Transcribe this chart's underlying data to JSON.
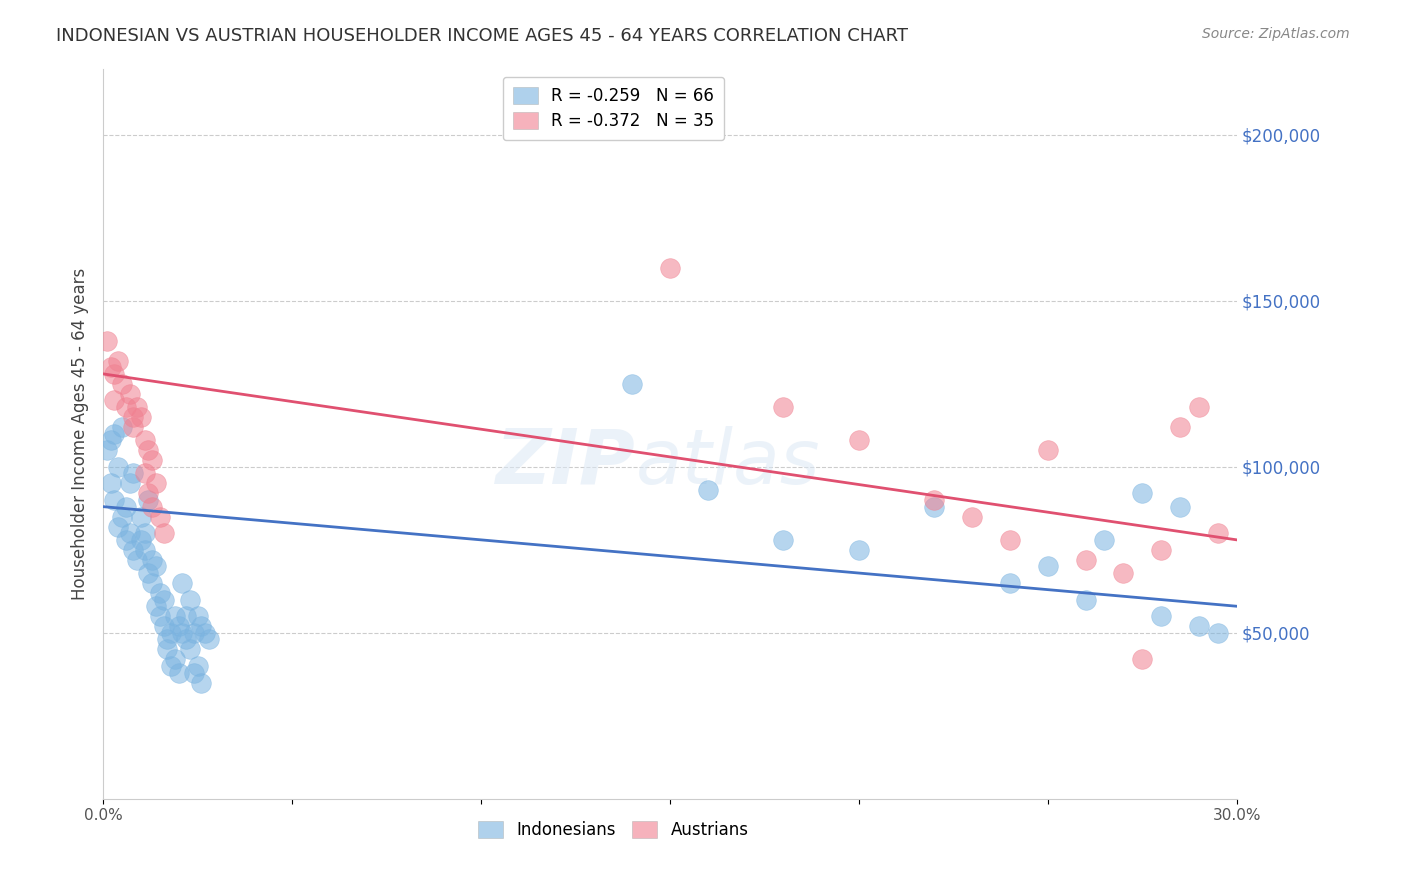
{
  "title": "INDONESIAN VS AUSTRIAN HOUSEHOLDER INCOME AGES 45 - 64 YEARS CORRELATION CHART",
  "source": "Source: ZipAtlas.com",
  "ylabel": "Householder Income Ages 45 - 64 years",
  "ytick_labels": [
    "$50,000",
    "$100,000",
    "$150,000",
    "$200,000"
  ],
  "ytick_values": [
    50000,
    100000,
    150000,
    200000
  ],
  "legend_labels": [
    "Indonesians",
    "Austrians"
  ],
  "legend_entries": [
    {
      "label": "R = -0.259   N = 66",
      "color": "#aec6e8"
    },
    {
      "label": "R = -0.372   N = 35",
      "color": "#f4b8c8"
    }
  ],
  "title_color": "#333333",
  "source_color": "#888888",
  "indonesian_color": "#7ab3e0",
  "austrian_color": "#f08090",
  "indonesian_line_color": "#4472c4",
  "austrian_line_color": "#e05070",
  "right_tick_color": "#4472c4",
  "grid_color": "#cccccc",
  "background_color": "#ffffff",
  "xlim": [
    0,
    0.3
  ],
  "ylim": [
    0,
    220000
  ],
  "indonesian_points": [
    [
      0.001,
      105000
    ],
    [
      0.002,
      108000
    ],
    [
      0.003,
      110000
    ],
    [
      0.002,
      95000
    ],
    [
      0.004,
      100000
    ],
    [
      0.005,
      112000
    ],
    [
      0.003,
      90000
    ],
    [
      0.006,
      88000
    ],
    [
      0.004,
      82000
    ],
    [
      0.005,
      85000
    ],
    [
      0.007,
      95000
    ],
    [
      0.008,
      98000
    ],
    [
      0.006,
      78000
    ],
    [
      0.007,
      80000
    ],
    [
      0.008,
      75000
    ],
    [
      0.009,
      72000
    ],
    [
      0.01,
      85000
    ],
    [
      0.01,
      78000
    ],
    [
      0.011,
      80000
    ],
    [
      0.012,
      90000
    ],
    [
      0.011,
      75000
    ],
    [
      0.013,
      72000
    ],
    [
      0.012,
      68000
    ],
    [
      0.014,
      70000
    ],
    [
      0.013,
      65000
    ],
    [
      0.015,
      62000
    ],
    [
      0.014,
      58000
    ],
    [
      0.016,
      60000
    ],
    [
      0.015,
      55000
    ],
    [
      0.016,
      52000
    ],
    [
      0.017,
      48000
    ],
    [
      0.018,
      50000
    ],
    [
      0.017,
      45000
    ],
    [
      0.019,
      42000
    ],
    [
      0.018,
      40000
    ],
    [
      0.02,
      38000
    ],
    [
      0.019,
      55000
    ],
    [
      0.02,
      52000
    ],
    [
      0.021,
      50000
    ],
    [
      0.022,
      48000
    ],
    [
      0.021,
      65000
    ],
    [
      0.023,
      60000
    ],
    [
      0.022,
      55000
    ],
    [
      0.024,
      50000
    ],
    [
      0.023,
      45000
    ],
    [
      0.025,
      40000
    ],
    [
      0.024,
      38000
    ],
    [
      0.026,
      35000
    ],
    [
      0.025,
      55000
    ],
    [
      0.026,
      52000
    ],
    [
      0.027,
      50000
    ],
    [
      0.028,
      48000
    ],
    [
      0.14,
      125000
    ],
    [
      0.16,
      93000
    ],
    [
      0.18,
      78000
    ],
    [
      0.2,
      75000
    ],
    [
      0.22,
      88000
    ],
    [
      0.24,
      65000
    ],
    [
      0.26,
      60000
    ],
    [
      0.28,
      55000
    ],
    [
      0.29,
      52000
    ],
    [
      0.295,
      50000
    ],
    [
      0.285,
      88000
    ],
    [
      0.275,
      92000
    ],
    [
      0.265,
      78000
    ],
    [
      0.25,
      70000
    ]
  ],
  "austrian_points": [
    [
      0.001,
      138000
    ],
    [
      0.002,
      130000
    ],
    [
      0.003,
      128000
    ],
    [
      0.004,
      132000
    ],
    [
      0.003,
      120000
    ],
    [
      0.005,
      125000
    ],
    [
      0.006,
      118000
    ],
    [
      0.007,
      122000
    ],
    [
      0.008,
      115000
    ],
    [
      0.009,
      118000
    ],
    [
      0.008,
      112000
    ],
    [
      0.01,
      115000
    ],
    [
      0.011,
      108000
    ],
    [
      0.012,
      105000
    ],
    [
      0.011,
      98000
    ],
    [
      0.013,
      102000
    ],
    [
      0.012,
      92000
    ],
    [
      0.014,
      95000
    ],
    [
      0.013,
      88000
    ],
    [
      0.015,
      85000
    ],
    [
      0.016,
      80000
    ],
    [
      0.15,
      160000
    ],
    [
      0.18,
      118000
    ],
    [
      0.2,
      108000
    ],
    [
      0.22,
      90000
    ],
    [
      0.23,
      85000
    ],
    [
      0.24,
      78000
    ],
    [
      0.25,
      105000
    ],
    [
      0.26,
      72000
    ],
    [
      0.27,
      68000
    ],
    [
      0.275,
      42000
    ],
    [
      0.28,
      75000
    ],
    [
      0.285,
      112000
    ],
    [
      0.29,
      118000
    ],
    [
      0.295,
      80000
    ]
  ],
  "indonesian_line": {
    "x0": 0.0,
    "y0": 88000,
    "x1": 0.3,
    "y1": 58000
  },
  "austrian_line": {
    "x0": 0.0,
    "y0": 128000,
    "x1": 0.3,
    "y1": 78000
  }
}
